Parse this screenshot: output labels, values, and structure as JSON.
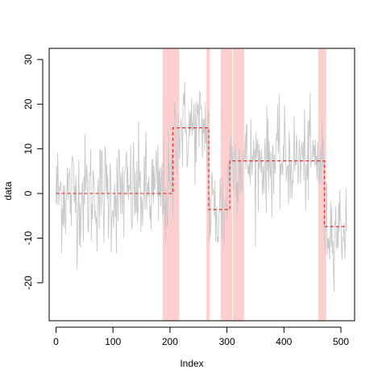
{
  "chart_data": {
    "type": "line",
    "title": "",
    "xlabel": "Index",
    "ylabel": "data",
    "xlim": [
      -12,
      524
    ],
    "ylim": [
      -28.5,
      32.5
    ],
    "grid": false,
    "legend": "none",
    "x_ticks": [
      0,
      100,
      200,
      300,
      400,
      500
    ],
    "y_ticks": [
      -20,
      -10,
      0,
      10,
      20,
      30
    ],
    "colors": {
      "raw": "#c8c8c8",
      "fit": "#e0302a",
      "highlight": "#ffcfcf",
      "axis": "#000000"
    },
    "highlight_regions": [
      [
        187,
        216
      ],
      [
        264,
        270
      ],
      [
        289,
        309
      ],
      [
        310,
        330
      ],
      [
        460,
        474
      ]
    ],
    "series": [
      {
        "style": "raw",
        "segments": [
          {
            "start": 0,
            "end": 205,
            "mean": 0,
            "sd": 6.5
          },
          {
            "start": 206,
            "end": 268,
            "mean": 14.5,
            "sd": 5.5
          },
          {
            "start": 269,
            "end": 300,
            "mean": -3.8,
            "sd": 6.5
          },
          {
            "start": 301,
            "end": 470,
            "mean": 7.3,
            "sd": 5.5
          },
          {
            "start": 471,
            "end": 510,
            "mean": -7.5,
            "sd": 5.0
          }
        ]
      },
      {
        "style": "fit",
        "steps": [
          {
            "x0": 0,
            "x1": 205,
            "y": 0
          },
          {
            "x0": 205,
            "x1": 268,
            "y": 14.7
          },
          {
            "x0": 268,
            "x1": 305,
            "y": -3.6
          },
          {
            "x0": 305,
            "x1": 471,
            "y": 7.3
          },
          {
            "x0": 471,
            "x1": 510,
            "y": -7.4
          }
        ]
      }
    ]
  }
}
